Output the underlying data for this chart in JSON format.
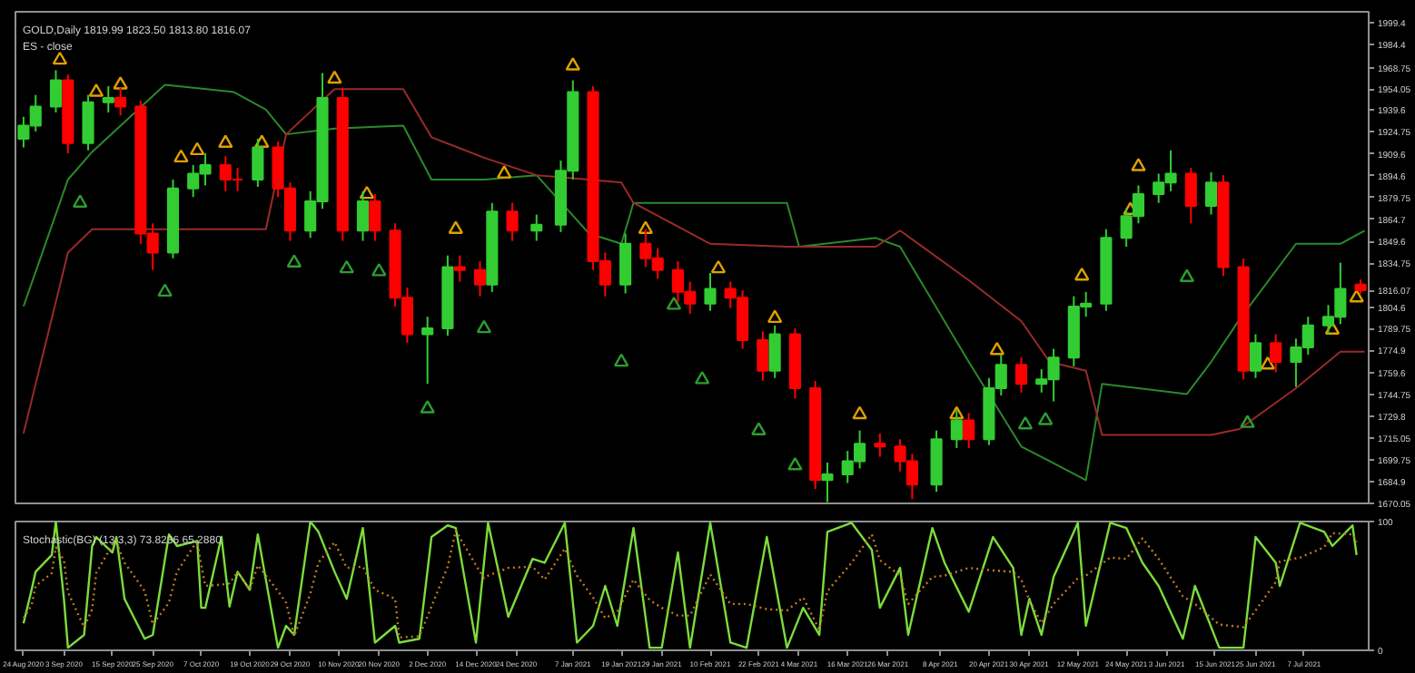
{
  "chart_data": [
    {
      "type": "candlestick",
      "title": "GOLD,Daily  1819.99 1823.50 1813.80 1816.07",
      "subtitle": "ES - close",
      "x": [
        "2020-08-24",
        "2020-08-27",
        "2020-09-01",
        "2020-09-04",
        "2020-09-09",
        "2020-09-14",
        "2020-09-17",
        "2020-09-22",
        "2020-09-25",
        "2020-09-30",
        "2020-10-05",
        "2020-10-08",
        "2020-10-13",
        "2020-10-16",
        "2020-10-21",
        "2020-10-26",
        "2020-10-29",
        "2020-11-03",
        "2020-11-06",
        "2020-11-11",
        "2020-11-16",
        "2020-11-19",
        "2020-11-24",
        "2020-11-27",
        "2020-12-02",
        "2020-12-07",
        "2020-12-10",
        "2020-12-15",
        "2020-12-18",
        "2020-12-23",
        "2020-12-29",
        "2021-01-04",
        "2021-01-07",
        "2021-01-12",
        "2021-01-15",
        "2021-01-20",
        "2021-01-25",
        "2021-01-28",
        "2021-02-02",
        "2021-02-05",
        "2021-02-10",
        "2021-02-15",
        "2021-02-18",
        "2021-02-23",
        "2021-02-26",
        "2021-03-03",
        "2021-03-08",
        "2021-03-11",
        "2021-03-16",
        "2021-03-19",
        "2021-03-24",
        "2021-03-29",
        "2021-04-01",
        "2021-04-07",
        "2021-04-12",
        "2021-04-15",
        "2021-04-20",
        "2021-04-23",
        "2021-04-28",
        "2021-05-03",
        "2021-05-06",
        "2021-05-11",
        "2021-05-14",
        "2021-05-19",
        "2021-05-24",
        "2021-05-27",
        "2021-06-01",
        "2021-06-04",
        "2021-06-09",
        "2021-06-14",
        "2021-06-17",
        "2021-06-22",
        "2021-06-25",
        "2021-06-30",
        "2021-07-05",
        "2021-07-08",
        "2021-07-13",
        "2021-07-16",
        "2021-07-21"
      ],
      "ohlc": [
        [
          1920,
          1935,
          1914,
          1929
        ],
        [
          1929,
          1950,
          1925,
          1942
        ],
        [
          1942,
          1967,
          1938,
          1960
        ],
        [
          1960,
          1964,
          1910,
          1917
        ],
        [
          1917,
          1950,
          1912,
          1945
        ],
        [
          1945,
          1956,
          1938,
          1948
        ],
        [
          1948,
          1955,
          1936,
          1942
        ],
        [
          1942,
          1946,
          1848,
          1855
        ],
        [
          1855,
          1862,
          1830,
          1842
        ],
        [
          1842,
          1892,
          1838,
          1886
        ],
        [
          1886,
          1902,
          1880,
          1896
        ],
        [
          1896,
          1910,
          1888,
          1902
        ],
        [
          1902,
          1908,
          1884,
          1892
        ],
        [
          1892,
          1900,
          1884,
          1892
        ],
        [
          1892,
          1920,
          1887,
          1914
        ],
        [
          1914,
          1918,
          1880,
          1886
        ],
        [
          1886,
          1890,
          1850,
          1857
        ],
        [
          1857,
          1884,
          1852,
          1877
        ],
        [
          1877,
          1965,
          1872,
          1948
        ],
        [
          1948,
          1955,
          1850,
          1857
        ],
        [
          1857,
          1884,
          1850,
          1877
        ],
        [
          1877,
          1882,
          1850,
          1857
        ],
        [
          1857,
          1862,
          1805,
          1811
        ],
        [
          1811,
          1818,
          1780,
          1786
        ],
        [
          1786,
          1798,
          1752,
          1790
        ],
        [
          1790,
          1840,
          1785,
          1832
        ],
        [
          1832,
          1840,
          1822,
          1830
        ],
        [
          1830,
          1836,
          1812,
          1820
        ],
        [
          1820,
          1876,
          1815,
          1870
        ],
        [
          1870,
          1876,
          1850,
          1857
        ],
        [
          1857,
          1868,
          1850,
          1861
        ],
        [
          1861,
          1905,
          1856,
          1898
        ],
        [
          1898,
          1960,
          1892,
          1952
        ],
        [
          1952,
          1956,
          1830,
          1836
        ],
        [
          1836,
          1842,
          1812,
          1820
        ],
        [
          1820,
          1855,
          1814,
          1848
        ],
        [
          1848,
          1858,
          1832,
          1838
        ],
        [
          1838,
          1845,
          1824,
          1830
        ],
        [
          1830,
          1836,
          1808,
          1815
        ],
        [
          1815,
          1822,
          1800,
          1807
        ],
        [
          1807,
          1828,
          1802,
          1817
        ],
        [
          1817,
          1822,
          1804,
          1811
        ],
        [
          1811,
          1816,
          1776,
          1782
        ],
        [
          1782,
          1788,
          1754,
          1761
        ],
        [
          1761,
          1792,
          1756,
          1786
        ],
        [
          1786,
          1790,
          1742,
          1749
        ],
        [
          1749,
          1754,
          1680,
          1686
        ],
        [
          1686,
          1698,
          1671,
          1690
        ],
        [
          1690,
          1706,
          1684,
          1699
        ],
        [
          1699,
          1720,
          1694,
          1711
        ],
        [
          1711,
          1718,
          1702,
          1709
        ],
        [
          1709,
          1714,
          1692,
          1699
        ],
        [
          1699,
          1704,
          1673,
          1683
        ],
        [
          1683,
          1720,
          1678,
          1714
        ],
        [
          1714,
          1734,
          1708,
          1727
        ],
        [
          1727,
          1732,
          1708,
          1714
        ],
        [
          1714,
          1756,
          1710,
          1749
        ],
        [
          1749,
          1772,
          1744,
          1765
        ],
        [
          1765,
          1770,
          1746,
          1752
        ],
        [
          1752,
          1762,
          1746,
          1755
        ],
        [
          1755,
          1776,
          1740,
          1770
        ],
        [
          1770,
          1812,
          1764,
          1805
        ],
        [
          1805,
          1815,
          1798,
          1807
        ],
        [
          1807,
          1858,
          1802,
          1852
        ],
        [
          1852,
          1872,
          1846,
          1867
        ],
        [
          1867,
          1888,
          1862,
          1882
        ],
        [
          1882,
          1896,
          1876,
          1890
        ],
        [
          1890,
          1912,
          1884,
          1896
        ],
        [
          1896,
          1900,
          1862,
          1874
        ],
        [
          1874,
          1897,
          1868,
          1890
        ],
        [
          1890,
          1895,
          1826,
          1832
        ],
        [
          1832,
          1838,
          1755,
          1761
        ],
        [
          1761,
          1786,
          1756,
          1780
        ],
        [
          1780,
          1786,
          1760,
          1767
        ],
        [
          1767,
          1783,
          1750,
          1777
        ],
        [
          1777,
          1798,
          1772,
          1792
        ],
        [
          1792,
          1806,
          1786,
          1798
        ],
        [
          1798,
          1835,
          1793,
          1817
        ],
        [
          1819.99,
          1823.5,
          1813.8,
          1816.07
        ]
      ],
      "colors": [
        "#32cd32",
        "#32cd32",
        "#32cd32",
        "#ff0000",
        "#32cd32",
        "#32cd32",
        "#ff0000",
        "#ff0000",
        "#ff0000",
        "#32cd32",
        "#32cd32",
        "#32cd32",
        "#ff0000",
        "#ff0000",
        "#32cd32",
        "#ff0000",
        "#ff0000",
        "#32cd32",
        "#32cd32",
        "#ff0000",
        "#32cd32",
        "#ff0000",
        "#ff0000",
        "#ff0000",
        "#32cd32",
        "#32cd32",
        "#ff0000",
        "#ff0000",
        "#32cd32",
        "#ff0000",
        "#32cd32",
        "#32cd32",
        "#32cd32",
        "#ff0000",
        "#ff0000",
        "#32cd32",
        "#ff0000",
        "#ff0000",
        "#ff0000",
        "#ff0000",
        "#32cd32",
        "#ff0000",
        "#ff0000",
        "#ff0000",
        "#32cd32",
        "#ff0000",
        "#ff0000",
        "#32cd32",
        "#32cd32",
        "#32cd32",
        "#ff0000",
        "#ff0000",
        "#ff0000",
        "#32cd32",
        "#32cd32",
        "#ff0000",
        "#32cd32",
        "#32cd32",
        "#ff0000",
        "#32cd32",
        "#32cd32",
        "#32cd32",
        "#32cd32",
        "#32cd32",
        "#32cd32",
        "#32cd32",
        "#32cd32",
        "#32cd32",
        "#ff0000",
        "#32cd32",
        "#ff0000",
        "#ff0000",
        "#32cd32",
        "#ff0000",
        "#32cd32",
        "#32cd32",
        "#32cd32",
        "#32cd32",
        "#ff0000"
      ],
      "series": [
        {
          "type": "line",
          "color": "#2a8a2a",
          "x": [
            "2020-08-24",
            "2020-09-04",
            "2020-09-10",
            "2020-09-28",
            "2020-10-15",
            "2020-10-23",
            "2020-10-28",
            "2020-11-09",
            "2020-11-26",
            "2020-12-03",
            "2020-12-16",
            "2020-12-29",
            "2021-01-11",
            "2021-01-19",
            "2021-01-22",
            "2021-02-10",
            "2021-03-01",
            "2021-03-04",
            "2021-03-23",
            "2021-03-29",
            "2021-04-15",
            "2021-04-28",
            "2021-05-05",
            "2021-05-14",
            "2021-05-18",
            "2021-06-08",
            "2021-06-14",
            "2021-06-21",
            "2021-07-05",
            "2021-07-16",
            "2021-07-22"
          ],
          "values": [
            1805,
            1892,
            1911,
            1957,
            1952,
            1940,
            1923,
            1927,
            1929,
            1892,
            1892,
            1895,
            1855,
            1848,
            1876,
            1876,
            1876,
            1846,
            1852,
            1846,
            1767,
            1709,
            1699,
            1686,
            1752,
            1745,
            1767,
            1796,
            1848,
            1848,
            1857
          ]
        },
        {
          "type": "line",
          "color": "#9a2a2a",
          "x": [
            "2020-08-24",
            "2020-09-04",
            "2020-09-10",
            "2020-09-28",
            "2020-10-15",
            "2020-10-23",
            "2020-10-28",
            "2020-11-09",
            "2020-11-26",
            "2020-12-03",
            "2020-12-16",
            "2020-12-29",
            "2021-01-11",
            "2021-01-19",
            "2021-01-22",
            "2021-02-10",
            "2021-03-01",
            "2021-03-04",
            "2021-03-23",
            "2021-03-29",
            "2021-04-15",
            "2021-04-28",
            "2021-05-05",
            "2021-05-14",
            "2021-05-18",
            "2021-06-08",
            "2021-06-14",
            "2021-06-21",
            "2021-07-05",
            "2021-07-16",
            "2021-07-22"
          ],
          "values": [
            1718,
            1842,
            1858,
            1858,
            1858,
            1858,
            1923,
            1954,
            1954,
            1921,
            1907,
            1895,
            1892,
            1890,
            1876,
            1848,
            1846,
            1846,
            1846,
            1857,
            1823,
            1795,
            1767,
            1761,
            1717,
            1717,
            1717,
            1721,
            1749,
            1774,
            1774
          ]
        },
        {
          "type": "scatter",
          "marker": "triangle",
          "color": "#e0a000",
          "x": [
            "2020-09-02",
            "2020-09-11",
            "2020-09-17",
            "2020-10-02",
            "2020-10-06",
            "2020-10-13",
            "2020-10-22",
            "2020-11-09",
            "2020-11-17",
            "2020-12-09",
            "2020-12-21",
            "2021-01-07",
            "2021-01-25",
            "2021-02-12",
            "2021-02-26",
            "2021-03-19",
            "2021-04-12",
            "2021-04-22",
            "2021-05-13",
            "2021-05-25",
            "2021-05-27",
            "2021-06-28",
            "2021-07-14",
            "2021-07-20"
          ],
          "values": [
            1974,
            1952,
            1957,
            1907,
            1912,
            1917,
            1917,
            1961,
            1882,
            1858,
            1896,
            1970,
            1858,
            1831,
            1797,
            1731,
            1731,
            1775,
            1826,
            1871,
            1901,
            1765,
            1789,
            1811
          ]
        },
        {
          "type": "scatter",
          "marker": "triangle",
          "color": "#2e9e2e",
          "x": [
            "2020-09-07",
            "2020-09-28",
            "2020-10-30",
            "2020-11-12",
            "2020-11-20",
            "2020-12-02",
            "2020-12-16",
            "2021-01-19",
            "2021-02-01",
            "2021-02-08",
            "2021-02-22",
            "2021-03-03",
            "2021-04-29",
            "2021-05-04",
            "2021-06-08",
            "2021-06-23"
          ],
          "values": [
            1876,
            1815,
            1835,
            1831,
            1829,
            1735,
            1790,
            1767,
            1806,
            1755,
            1720,
            1696,
            1724,
            1727,
            1825,
            1725
          ]
        }
      ],
      "xlim": [
        "2020-08-22",
        "2021-07-23"
      ],
      "ylim": [
        1670.05,
        2007
      ],
      "yticks": [
        1670.05,
        1684.9,
        1699.75,
        1715.05,
        1729.8,
        1744.75,
        1759.6,
        1774.9,
        1789.75,
        1804.6,
        {
          "value": 1816.07,
          "label": "1816.07"
        },
        1834.75,
        1849.6,
        1864.7,
        1879.75,
        1894.6,
        1909.6,
        1924.75,
        1939.6,
        1954.05,
        1968.75,
        1984.4,
        1999.4
      ],
      "tick_labels": "y",
      "grid": false
    },
    {
      "type": "line",
      "title": "Stochastic(BG) (13,3,3) 73.8236 65.2880",
      "x": [
        "2020-08-24",
        "2020-08-26",
        "2020-08-27",
        "2020-08-31",
        "2020-09-01",
        "2020-09-03",
        "2020-09-04",
        "2020-09-08",
        "2020-09-10",
        "2020-09-11",
        "2020-09-15",
        "2020-09-16",
        "2020-09-18",
        "2020-09-23",
        "2020-09-25",
        "2020-09-29",
        "2020-10-01",
        "2020-10-06",
        "2020-10-07",
        "2020-10-08",
        "2020-10-12",
        "2020-10-14",
        "2020-10-16",
        "2020-10-19",
        "2020-10-21",
        "2020-10-26",
        "2020-10-28",
        "2020-10-30",
        "2020-11-03",
        "2020-11-05",
        "2020-11-09",
        "2020-11-12",
        "2020-11-16",
        "2020-11-19",
        "2020-11-24",
        "2020-11-25",
        "2020-11-30",
        "2020-12-03",
        "2020-12-07",
        "2020-12-09",
        "2020-12-14",
        "2020-12-16",
        "2020-12-17",
        "2020-12-22",
        "2020-12-28",
        "2020-12-31",
        "2021-01-05",
        "2021-01-08",
        "2021-01-12",
        "2021-01-15",
        "2021-01-18",
        "2021-01-22",
        "2021-01-26",
        "2021-01-29",
        "2021-02-02",
        "2021-02-05",
        "2021-02-10",
        "2021-02-15",
        "2021-02-19",
        "2021-02-24",
        "2021-03-01",
        "2021-03-05",
        "2021-03-09",
        "2021-03-11",
        "2021-03-17",
        "2021-03-22",
        "2021-03-24",
        "2021-03-29",
        "2021-03-31",
        "2021-04-06",
        "2021-04-09",
        "2021-04-15",
        "2021-04-21",
        "2021-04-26",
        "2021-04-28",
        "2021-04-30",
        "2021-05-03",
        "2021-05-06",
        "2021-05-12",
        "2021-05-14",
        "2021-05-20",
        "2021-05-24",
        "2021-05-28",
        "2021-06-01",
        "2021-06-07",
        "2021-06-10",
        "2021-06-16",
        "2021-06-22",
        "2021-06-25",
        "2021-06-30",
        "2021-07-01",
        "2021-07-06",
        "2021-07-12",
        "2021-07-14",
        "2021-07-19",
        "2021-07-20"
      ],
      "series": [
        {
          "color": "#7cdc3c",
          "line_style": "solid",
          "values": [
            21,
            47,
            61,
            74,
            100,
            40,
            2,
            12,
            81,
            88,
            76,
            88,
            40,
            9,
            12,
            90,
            81,
            85,
            33,
            33,
            88,
            34,
            61,
            47,
            90,
            2,
            19,
            12,
            100,
            92,
            61,
            40,
            95,
            6,
            19,
            6,
            9,
            88,
            97,
            95,
            6,
            68,
            99,
            26,
            71,
            68,
            99,
            6,
            19,
            50,
            19,
            95,
            2,
            2,
            76,
            2,
            99,
            6,
            2,
            88,
            2,
            33,
            12,
            92,
            99,
            78,
            33,
            64,
            12,
            95,
            68,
            30,
            88,
            64,
            12,
            40,
            12,
            57,
            99,
            19,
            99,
            95,
            68,
            50,
            9,
            50,
            2,
            2,
            88,
            68,
            50,
            99,
            92,
            81,
            97,
            74
          ]
        },
        {
          "color": "#c07a20",
          "line_style": "dotted",
          "values": [
            25,
            35,
            50,
            60,
            80,
            70,
            45,
            18,
            32,
            60,
            82,
            84,
            68,
            46,
            20,
            37,
            61,
            85,
            66,
            50,
            51,
            52,
            61,
            47,
            66,
            46,
            37,
            11,
            44,
            68,
            84,
            64,
            65,
            47,
            40,
            10,
            11,
            34,
            65,
            93,
            66,
            56,
            58,
            64,
            65,
            55,
            79,
            58,
            41,
            25,
            30,
            55,
            39,
            33,
            27,
            27,
            59,
            36,
            36,
            32,
            31,
            41,
            16,
            46,
            68,
            90,
            70,
            58,
            36,
            57,
            58,
            64,
            62,
            61,
            55,
            39,
            21,
            36,
            56,
            58,
            72,
            71,
            87,
            71,
            42,
            36,
            20,
            18,
            31,
            53,
            69,
            72,
            80,
            91,
            90,
            84
          ]
        }
      ],
      "xlim": [
        "2020-08-22",
        "2021-07-23"
      ],
      "ylim": [
        0,
        100
      ],
      "yticks": [
        0,
        100
      ],
      "xticks": [
        {
          "value": "2020-08-24",
          "label": "24 Aug 2020"
        },
        {
          "value": "2020-09-03",
          "label": "3 Sep 2020"
        },
        {
          "value": "2020-09-15",
          "label": "15 Sep 2020"
        },
        {
          "value": "2020-09-25",
          "label": "25 Sep 2020"
        },
        {
          "value": "2020-10-07",
          "label": "7 Oct 2020"
        },
        {
          "value": "2020-10-19",
          "label": "19 Oct 2020"
        },
        {
          "value": "2020-10-29",
          "label": "29 Oct 2020"
        },
        {
          "value": "2020-11-10",
          "label": "10 Nov 2020"
        },
        {
          "value": "2020-11-20",
          "label": "20 Nov 2020"
        },
        {
          "value": "2020-12-02",
          "label": "2 Dec 2020"
        },
        {
          "value": "2020-12-14",
          "label": "14 Dec 2020"
        },
        {
          "value": "2020-12-24",
          "label": "24 Dec 2020"
        },
        {
          "value": "2021-01-07",
          "label": "7 Jan 2021"
        },
        {
          "value": "2021-01-19",
          "label": "19 Jan 2021"
        },
        {
          "value": "2021-01-29",
          "label": "29 Jan 2021"
        },
        {
          "value": "2021-02-10",
          "label": "10 Feb 2021"
        },
        {
          "value": "2021-02-22",
          "label": "22 Feb 2021"
        },
        {
          "value": "2021-03-04",
          "label": "4 Mar 2021"
        },
        {
          "value": "2021-03-16",
          "label": "16 Mar 2021"
        },
        {
          "value": "2021-03-26",
          "label": "26 Mar 2021"
        },
        {
          "value": "2021-04-08",
          "label": "8 Apr 2021"
        },
        {
          "value": "2021-04-20",
          "label": "20 Apr 2021"
        },
        {
          "value": "2021-04-30",
          "label": "30 Apr 2021"
        },
        {
          "value": "2021-05-12",
          "label": "12 May 2021"
        },
        {
          "value": "2021-05-24",
          "label": "24 May 2021"
        },
        {
          "value": "2021-06-03",
          "label": "3 Jun 2021"
        },
        {
          "value": "2021-06-15",
          "label": "15 Jun 2021"
        },
        {
          "value": "2021-06-25",
          "label": "25 Jun 2021"
        },
        {
          "value": "2021-07-07",
          "label": "7 Jul 2021"
        }
      ],
      "grid": false
    }
  ]
}
